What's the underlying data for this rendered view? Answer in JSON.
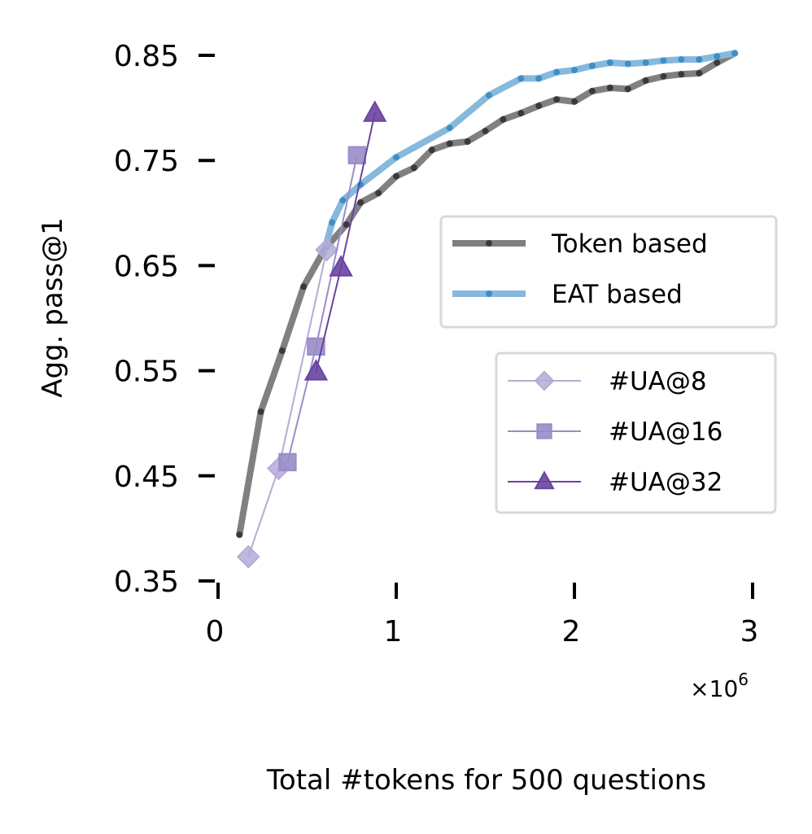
{
  "chart_data": {
    "type": "line",
    "title": "",
    "xlabel": "Total #tokens for 500 questions",
    "ylabel": "Agg. pass@1",
    "x_multiplier_label": "×10",
    "x_multiplier_exponent": "6",
    "xlim": [
      0,
      3000000
    ],
    "ylim": [
      0.35,
      0.85
    ],
    "x_scale": 1000000,
    "xticks": [
      0,
      1,
      2,
      3
    ],
    "xtick_labels": [
      "0",
      "1",
      "2",
      "3"
    ],
    "yticks": [
      0.35,
      0.45,
      0.55,
      0.65,
      0.75,
      0.85
    ],
    "ytick_labels": [
      "0.35",
      "0.45",
      "0.55",
      "0.65",
      "0.75",
      "0.85"
    ],
    "grid": false,
    "legends": [
      {
        "placement": "right",
        "entries": [
          "Token based",
          "EAT based"
        ]
      },
      {
        "placement": "lower-right",
        "entries": [
          "#UA@8",
          "#UA@16",
          "#UA@32"
        ]
      }
    ],
    "series": [
      {
        "name": "Token based",
        "color": "#808080",
        "marker": "dot",
        "x": [
          120000,
          240000,
          360000,
          480000,
          600000,
          720000,
          800000,
          900000,
          1000000,
          1100000,
          1200000,
          1300000,
          1400000,
          1500000,
          1600000,
          1700000,
          1800000,
          1900000,
          2000000,
          2100000,
          2200000,
          2300000,
          2400000,
          2500000,
          2600000,
          2700000,
          2800000,
          2900000
        ],
        "y": [
          0.394,
          0.511,
          0.569,
          0.63,
          0.666,
          0.689,
          0.71,
          0.719,
          0.735,
          0.743,
          0.76,
          0.766,
          0.768,
          0.778,
          0.789,
          0.795,
          0.802,
          0.808,
          0.806,
          0.816,
          0.819,
          0.818,
          0.826,
          0.83,
          0.832,
          0.833,
          0.843,
          0.852
        ]
      },
      {
        "name": "EAT based",
        "color": "#86B9DC",
        "marker": "dot",
        "x": [
          600000,
          640000,
          700000,
          800000,
          1000000,
          1300000,
          1520000,
          1700000,
          1800000,
          1900000,
          2000000,
          2100000,
          2200000,
          2300000,
          2400000,
          2500000,
          2600000,
          2700000,
          2800000,
          2900000
        ],
        "y": [
          0.666,
          0.691,
          0.712,
          0.727,
          0.753,
          0.781,
          0.812,
          0.828,
          0.828,
          0.834,
          0.836,
          0.84,
          0.843,
          0.842,
          0.843,
          0.845,
          0.846,
          0.846,
          0.849,
          0.852
        ]
      },
      {
        "name": "#UA@8",
        "color": "#B4ACD6",
        "marker": "diamond",
        "x": [
          170000,
          340000,
          610000
        ],
        "y": [
          0.373,
          0.457,
          0.665
        ]
      },
      {
        "name": "#UA@16",
        "color": "#9A8CC8",
        "marker": "square",
        "x": [
          390000,
          550000,
          780000
        ],
        "y": [
          0.463,
          0.573,
          0.755
        ]
      },
      {
        "name": "#UA@32",
        "color": "#6A44A0",
        "marker": "triangle",
        "x": [
          550000,
          690000,
          880000
        ],
        "y": [
          0.549,
          0.648,
          0.795
        ]
      }
    ]
  }
}
